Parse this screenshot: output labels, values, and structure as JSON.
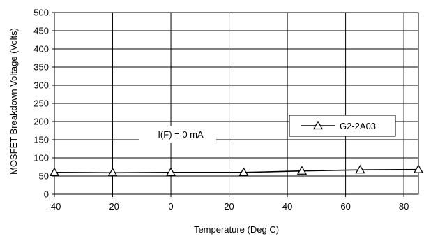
{
  "chart_data": {
    "type": "line",
    "xlabel": "Temperature (Deg C)",
    "ylabel": "MOSFET Breakdown Voltage  (Volts)",
    "xlim": [
      -40,
      85
    ],
    "ylim": [
      0,
      500
    ],
    "x_ticks": [
      "-40",
      "-20",
      "0",
      "20",
      "40",
      "60",
      "80"
    ],
    "y_ticks": [
      "0",
      "50",
      "100",
      "150",
      "200",
      "250",
      "300",
      "350",
      "400",
      "450",
      "500"
    ],
    "grid": true,
    "legend_position": "right",
    "annotation": "I(F) = 0 mA",
    "series": [
      {
        "name": "G2-2A03",
        "marker": "triangle",
        "color": "#000000",
        "x": [
          -40,
          -20,
          0,
          25,
          45,
          65,
          85
        ],
        "y": [
          60,
          59,
          60,
          60,
          64,
          67,
          68
        ]
      }
    ]
  }
}
